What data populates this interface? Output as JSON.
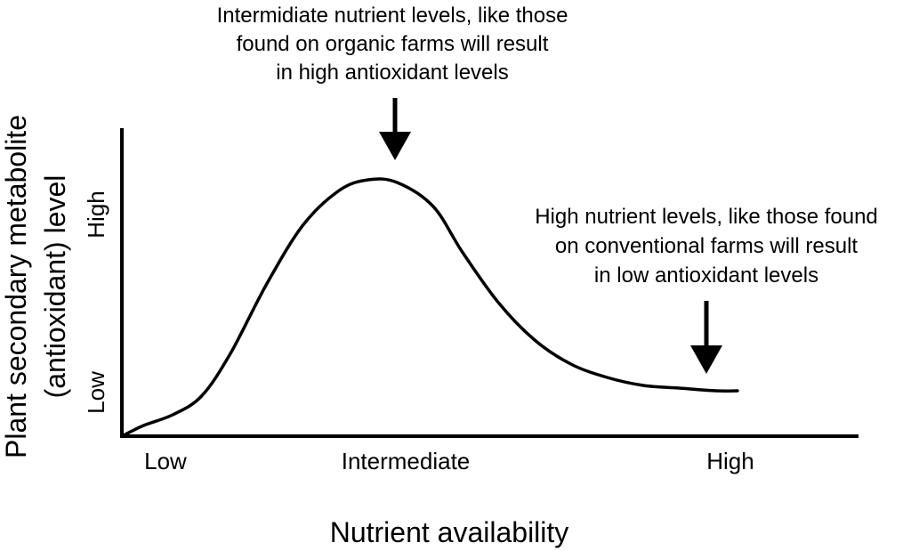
{
  "chart_data": {
    "type": "line",
    "title": "",
    "xlabel": "Nutrient availability",
    "ylabel_lines": [
      "Plant secondary metabolite",
      "(antioxidant) level"
    ],
    "x_tick_labels": [
      "Low",
      "Intermediate",
      "High"
    ],
    "y_tick_labels": [
      "Low",
      "High"
    ],
    "grid": false,
    "legend": "none",
    "xlim": [
      0,
      1
    ],
    "ylim": [
      0,
      1
    ],
    "series": [
      {
        "x": [
          0.0,
          0.03,
          0.07,
          0.11,
          0.15,
          0.2,
          0.25,
          0.3,
          0.34,
          0.38,
          0.43,
          0.47,
          0.52,
          0.57,
          0.62,
          0.67,
          0.72,
          0.77,
          0.82,
          0.85
        ],
        "y": [
          0.0,
          0.04,
          0.08,
          0.15,
          0.31,
          0.57,
          0.79,
          0.92,
          0.96,
          0.95,
          0.86,
          0.69,
          0.5,
          0.36,
          0.27,
          0.22,
          0.19,
          0.18,
          0.17,
          0.17
        ]
      }
    ],
    "annotations": [
      {
        "lines": [
          "Intermidiate nutrient levels, like those",
          "found on organic farms will result",
          "in high antioxidant levels"
        ],
        "arrow": "down",
        "target_x": 0.36
      },
      {
        "lines": [
          "High nutrient levels, like those found",
          "on conventional farms will result",
          "in low antioxidant levels"
        ],
        "arrow": "down",
        "target_x": 0.81
      }
    ]
  }
}
